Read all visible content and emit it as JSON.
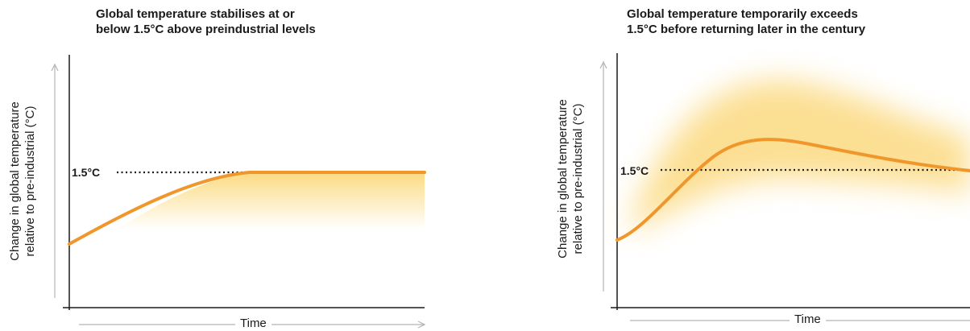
{
  "panels": [
    {
      "title_line1": "Global temperature stabilises at or",
      "title_line2": "below 1.5°C above preindustrial levels",
      "ylabel_line1": "Change in global temperature",
      "ylabel_line2": "relative to pre-industrial (°C)",
      "xlabel": "Time",
      "threshold_label": "1.5°C"
    },
    {
      "title_line1": "Global temperature temporarily exceeds",
      "title_line2": "1.5°C before returning later in the century",
      "ylabel_line1": "Change in global temperature",
      "ylabel_line2": "relative to pre-industrial (°C)",
      "xlabel": "Time",
      "threshold_label": "1.5°C"
    }
  ],
  "colors": {
    "curve": "#f0962a",
    "band": "#f9c53a",
    "axis": "#1a1a1a",
    "arrow": "#b4b4b4"
  }
}
